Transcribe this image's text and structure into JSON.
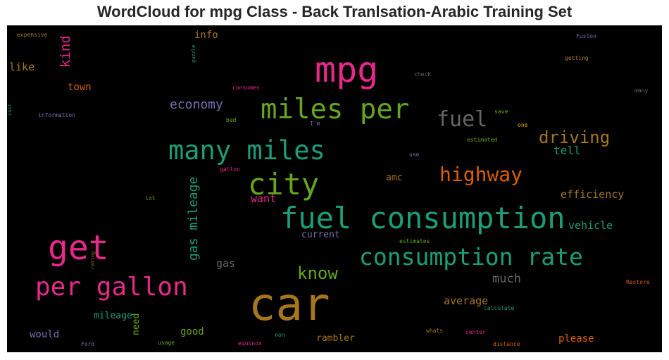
{
  "chart_data": {
    "type": "wordcloud",
    "title": "WordCloud for mpg Class - Back Tranlsation-Arabic Training Set",
    "background": "#000000",
    "words": [
      {
        "text": "car",
        "weight": 1.0,
        "color": "#a6761d"
      },
      {
        "text": "mpg",
        "weight": 0.88,
        "color": "#e7298a"
      },
      {
        "text": "get",
        "weight": 0.82,
        "color": "#e7298a"
      },
      {
        "text": "fuel consumption",
        "weight": 0.72,
        "color": "#1b9e77"
      },
      {
        "text": "many miles",
        "weight": 0.62,
        "color": "#1b9e77"
      },
      {
        "text": "miles per",
        "weight": 0.68,
        "color": "#66a61e"
      },
      {
        "text": "city",
        "weight": 0.72,
        "color": "#66a61e"
      },
      {
        "text": "per gallon",
        "weight": 0.6,
        "color": "#e7298a"
      },
      {
        "text": "consumption rate",
        "weight": 0.55,
        "color": "#1b9e77"
      },
      {
        "text": "fuel",
        "weight": 0.5,
        "color": "#666666"
      },
      {
        "text": "highway",
        "weight": 0.45,
        "color": "#d95f02"
      },
      {
        "text": "driving",
        "weight": 0.38,
        "color": "#a6761d"
      },
      {
        "text": "know",
        "weight": 0.38,
        "color": "#66a61e"
      },
      {
        "text": "gas mileage",
        "weight": 0.33,
        "color": "#1b9e77"
      },
      {
        "text": "kind",
        "weight": 0.3,
        "color": "#e7298a"
      },
      {
        "text": "economy",
        "weight": 0.28,
        "color": "#7570b3"
      },
      {
        "text": "much",
        "weight": 0.28,
        "color": "#666666"
      },
      {
        "text": "tell",
        "weight": 0.26,
        "color": "#1b9e77"
      },
      {
        "text": "efficiency",
        "weight": 0.25,
        "color": "#a6761d"
      },
      {
        "text": "vehicle",
        "weight": 0.25,
        "color": "#1b9e77"
      },
      {
        "text": "want",
        "weight": 0.24,
        "color": "#e7298a"
      },
      {
        "text": "average",
        "weight": 0.24,
        "color": "#a6761d"
      },
      {
        "text": "gas",
        "weight": 0.24,
        "color": "#666666"
      },
      {
        "text": "like",
        "weight": 0.24,
        "color": "#a6761d"
      },
      {
        "text": "town",
        "weight": 0.22,
        "color": "#d95f02"
      },
      {
        "text": "info",
        "weight": 0.22,
        "color": "#a6761d"
      },
      {
        "text": "please",
        "weight": 0.22,
        "color": "#d95f02"
      },
      {
        "text": "amc",
        "weight": 0.2,
        "color": "#a6761d"
      },
      {
        "text": "current",
        "weight": 0.2,
        "color": "#7570b3"
      },
      {
        "text": "mileage",
        "weight": 0.21,
        "color": "#1b9e77"
      },
      {
        "text": "would",
        "weight": 0.21,
        "color": "#7570b3"
      },
      {
        "text": "good",
        "weight": 0.2,
        "color": "#66a61e"
      },
      {
        "text": "need",
        "weight": 0.2,
        "color": "#66a61e"
      },
      {
        "text": "rambler",
        "weight": 0.2,
        "color": "#a6761d"
      },
      {
        "text": "expensive",
        "weight": 0.1,
        "color": "#a6761d"
      },
      {
        "text": "Fusion",
        "weight": 0.1,
        "color": "#7570b3"
      },
      {
        "text": "getting",
        "weight": 0.1,
        "color": "#a6761d"
      },
      {
        "text": "guzzle",
        "weight": 0.09,
        "color": "#1b9e77"
      },
      {
        "text": "check",
        "weight": 0.09,
        "color": "#666666"
      },
      {
        "text": "consumes",
        "weight": 0.09,
        "color": "#e7298a"
      },
      {
        "text": "many",
        "weight": 0.09,
        "color": "#666666"
      },
      {
        "text": "information",
        "weight": 0.1,
        "color": "#7570b3"
      },
      {
        "text": "cost",
        "weight": 0.09,
        "color": "#1b9e77"
      },
      {
        "text": "save",
        "weight": 0.09,
        "color": "#66a61e"
      },
      {
        "text": "bad",
        "weight": 0.09,
        "color": "#66a61e"
      },
      {
        "text": "I'm",
        "weight": 0.09,
        "color": "#7570b3"
      },
      {
        "text": "one",
        "weight": 0.09,
        "color": "#e6ab02"
      },
      {
        "text": "estimated",
        "weight": 0.09,
        "color": "#66a61e"
      },
      {
        "text": "use",
        "weight": 0.09,
        "color": "#7570b3"
      },
      {
        "text": "gallon",
        "weight": 0.09,
        "color": "#e7298a"
      },
      {
        "text": "lot",
        "weight": 0.09,
        "color": "#66a61e"
      },
      {
        "text": "estimates",
        "weight": 0.09,
        "color": "#66a61e"
      },
      {
        "text": "rating",
        "weight": 0.08,
        "color": "#a6761d"
      },
      {
        "text": "Restore",
        "weight": 0.09,
        "color": "#d95f02"
      },
      {
        "text": "calculate",
        "weight": 0.09,
        "color": "#1b9e77"
      },
      {
        "text": "whats",
        "weight": 0.09,
        "color": "#a6761d"
      },
      {
        "text": "center",
        "weight": 0.09,
        "color": "#e7298a"
      },
      {
        "text": "non",
        "weight": 0.09,
        "color": "#1b9e77"
      },
      {
        "text": "Ford",
        "weight": 0.09,
        "color": "#7570b3"
      },
      {
        "text": "usage",
        "weight": 0.09,
        "color": "#66a61e"
      },
      {
        "text": "equinox",
        "weight": 0.09,
        "color": "#e7298a"
      },
      {
        "text": "distance",
        "weight": 0.09,
        "color": "#d95f02"
      }
    ]
  }
}
